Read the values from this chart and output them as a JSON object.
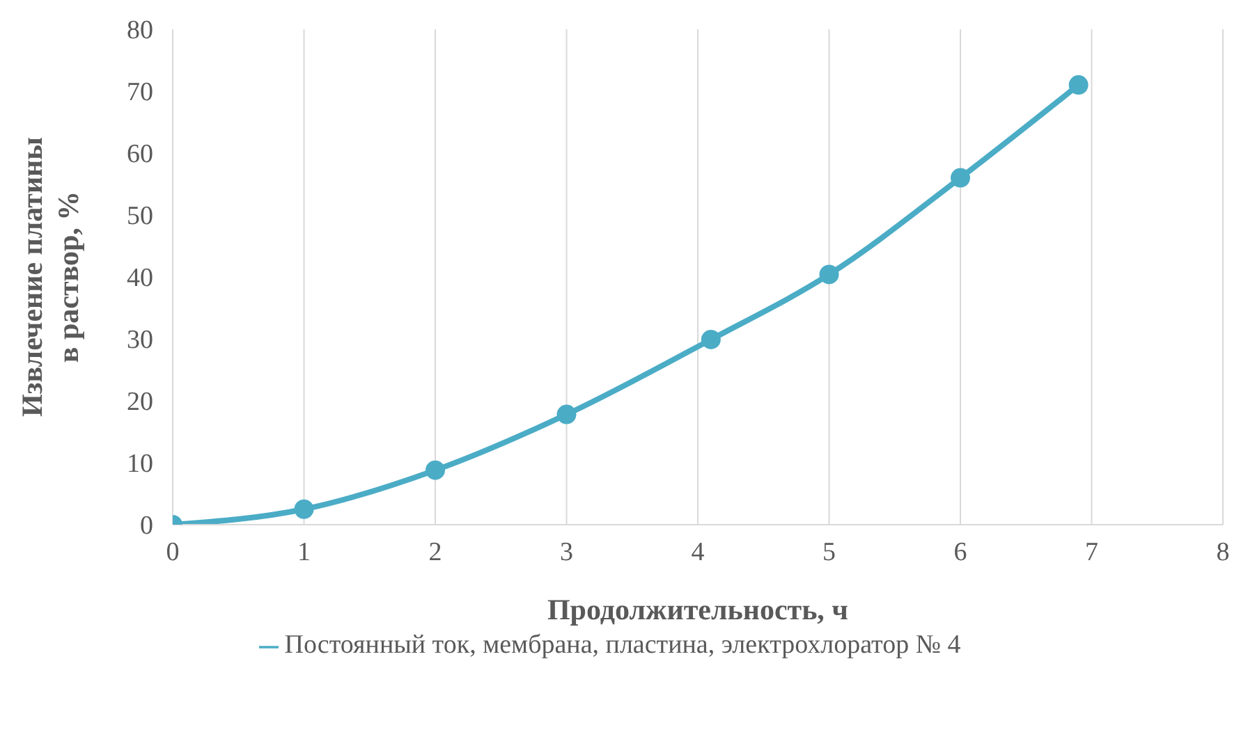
{
  "chart_data": {
    "type": "line",
    "xlabel": "Продолжительность, ч",
    "ylabel": "Извлечение платины\nв раствор, %",
    "x": [
      0,
      1,
      2,
      3,
      4.1,
      5,
      6,
      6.9
    ],
    "series": [
      {
        "name": "Постоянный ток, мембрана, пластина, электрохлоратор  № 4",
        "color": "#4bacc6",
        "values": [
          0,
          2.5,
          8.8,
          17.8,
          29.9,
          40.4,
          56,
          71
        ]
      }
    ],
    "xlim": [
      0,
      8
    ],
    "xticks": [
      0,
      1,
      2,
      3,
      4,
      5,
      6,
      7,
      8
    ],
    "ylim": [
      0,
      80
    ],
    "yticks": [
      0,
      10,
      20,
      30,
      40,
      50,
      60,
      70,
      80
    ],
    "grid": true,
    "legend": "bottom",
    "marker": "circle",
    "line_style": "solid"
  }
}
